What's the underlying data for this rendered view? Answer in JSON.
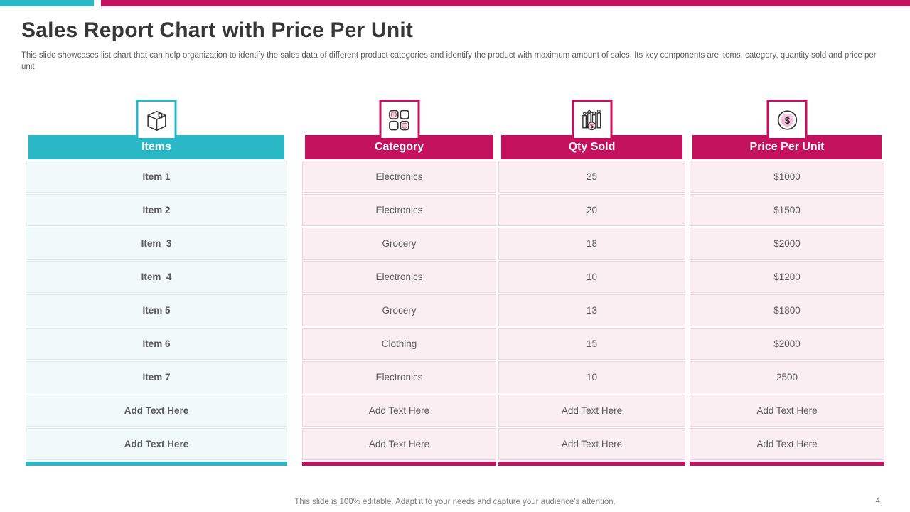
{
  "slide": {
    "title": "Sales Report Chart with Price Per Unit",
    "subtitle": "This slide showcases list chart that can help organization to identify the sales data of different product categories and identify the product with maximum amount of sales. Its key components are items, category, quantity sold and price per unit",
    "footer_note": "This slide is 100% editable. Adapt it to your needs and capture your audience's attention.",
    "page_number": "4"
  },
  "colors": {
    "teal_accent": "#2AB7C6",
    "pink_accent": "#C4125F",
    "teal_row_bg": "#F2F9FB",
    "teal_row_border": "#D9EAEE",
    "pink_row_bg": "#FBEEF3",
    "pink_row_border": "#EED3DE",
    "cell_text": "#5a5a5a",
    "icon_stroke": "#333333",
    "icon_pink_fill": "#F6CCDD"
  },
  "table": {
    "columns": [
      {
        "label": "Items",
        "icon": "box-icon",
        "accent_color": "#2AB7C6",
        "cell_bg": "#F2F9FB",
        "cell_border": "#D9EAEE",
        "bold_cells": true,
        "cells": [
          "Item 1",
          "Item 2",
          "Item  3",
          "Item  4",
          "Item 5",
          "Item 6",
          "Item 7",
          "Add Text Here",
          "Add Text Here"
        ]
      },
      {
        "label": "Category",
        "icon": "category-grid-icon",
        "accent_color": "#C4125F",
        "cell_bg": "#FBEEF3",
        "cell_border": "#EED3DE",
        "bold_cells": false,
        "cells": [
          "Electronics",
          "Electronics",
          "Grocery",
          "Electronics",
          "Grocery",
          "Clothing",
          "Electronics",
          "Add Text Here",
          "Add Text Here"
        ]
      },
      {
        "label": "Qty Sold",
        "icon": "bar-chart-dollar-icon",
        "accent_color": "#C4125F",
        "cell_bg": "#FBEEF3",
        "cell_border": "#EED3DE",
        "bold_cells": false,
        "cells": [
          "25",
          "20",
          "18",
          "10",
          "13",
          "15",
          "10",
          "Add Text Here",
          "Add Text Here"
        ]
      },
      {
        "label": "Price Per Unit",
        "icon": "dollar-coin-icon",
        "accent_color": "#C4125F",
        "cell_bg": "#FBEEF3",
        "cell_border": "#EED3DE",
        "bold_cells": false,
        "cells": [
          "$1000",
          "$1500",
          "$2000",
          "$1200",
          "$1800",
          "$2000",
          "2500",
          "Add Text Here",
          "Add Text Here"
        ]
      }
    ]
  },
  "chart_data": {
    "type": "table",
    "columns": [
      "Items",
      "Category",
      "Qty Sold",
      "Price Per Unit"
    ],
    "rows": [
      [
        "Item 1",
        "Electronics",
        "25",
        "$1000"
      ],
      [
        "Item 2",
        "Electronics",
        "20",
        "$1500"
      ],
      [
        "Item 3",
        "Grocery",
        "18",
        "$2000"
      ],
      [
        "Item 4",
        "Electronics",
        "10",
        "$1200"
      ],
      [
        "Item 5",
        "Grocery",
        "13",
        "$1800"
      ],
      [
        "Item 6",
        "Clothing",
        "15",
        "$2000"
      ],
      [
        "Item 7",
        "Electronics",
        "10",
        "2500"
      ],
      [
        "Add Text Here",
        "Add Text Here",
        "Add Text Here",
        "Add Text Here"
      ],
      [
        "Add Text Here",
        "Add Text Here",
        "Add Text Here",
        "Add Text Here"
      ]
    ]
  }
}
